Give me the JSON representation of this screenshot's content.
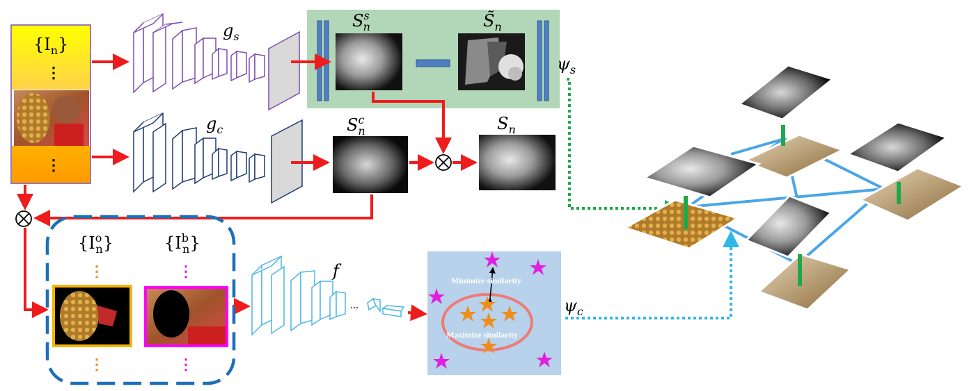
{
  "labels": {
    "input_set": "{I",
    "input_set_sub": "n",
    "input_set_close": "}",
    "gs": "g",
    "gs_sub": "s",
    "gc": "g",
    "gc_sub": "c",
    "f": "f",
    "ssn": "S",
    "ssn_sub": "n",
    "ssn_sup": "s",
    "stn": "S̃",
    "stn_sub": "n",
    "scn": "S",
    "scn_sub": "n",
    "scn_sup": "c",
    "sn": "S",
    "sn_sub": "n",
    "psi_s": "ψ",
    "psi_s_sub": "s",
    "psi_c": "ψ",
    "psi_c_sub": "c",
    "io": "{I",
    "io_sub": "n",
    "io_sup": "o",
    "io_close": "}",
    "ib": "{I",
    "ib_sub": "n",
    "ib_sup": "b",
    "ib_close": "}",
    "minimize": "Minimize similarity",
    "maximize": "Maximize similarity",
    "ellipsis": "...",
    "vdots": "⋮"
  },
  "colors": {
    "arrow_red": "#ee1c1c",
    "green_panel": "#b2d7b8",
    "blue_panel": "#b7d2ea",
    "purple_net": "#7d4fb0",
    "navy_net": "#1f3a73",
    "cyan_net": "#4fb6e6",
    "dash_blue": "#1e6fb8",
    "graph_blue": "#4aa6e6",
    "green_dot": "#1ea84a",
    "cyan_dot": "#31b6e6",
    "star_magenta": "#e020e0",
    "star_orange": "#f08c1a",
    "ellipse": "#f07a74"
  }
}
